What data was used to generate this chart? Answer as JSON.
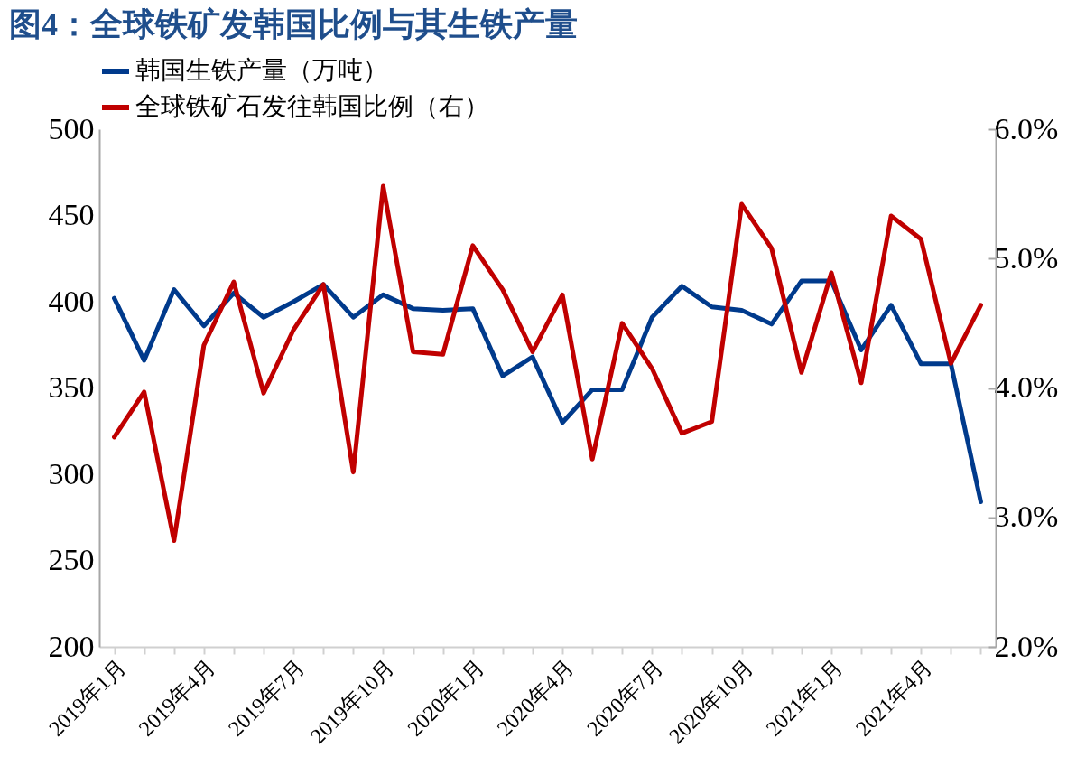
{
  "chart_data": {
    "type": "line",
    "title": "图4：全球铁矿发韩国比例与其生铁产量",
    "categories": [
      "2019年1月",
      null,
      null,
      "2019年4月",
      null,
      null,
      "2019年7月",
      null,
      null,
      "2019年10月",
      null,
      null,
      "2020年1月",
      null,
      null,
      "2020年4月",
      null,
      null,
      "2020年7月",
      null,
      null,
      "2020年10月",
      null,
      null,
      "2021年1月",
      null,
      null,
      "2021年4月",
      null,
      null
    ],
    "series": [
      {
        "name": "韩国生铁产量（万吨）",
        "color": "#003a8c",
        "values": [
          402,
          366,
          407,
          386,
          405,
          391,
          400,
          410,
          391,
          404,
          396,
          395,
          396,
          357,
          368,
          330,
          349,
          349,
          391,
          409,
          397,
          395,
          387,
          412,
          412,
          372,
          398,
          364,
          364,
          284
        ]
      },
      {
        "name": "全球铁矿石发往韩国比例（右）",
        "color": "#c00000",
        "axis": "y2",
        "values": [
          3.62,
          3.97,
          2.82,
          4.33,
          4.82,
          3.96,
          4.45,
          4.8,
          3.35,
          5.56,
          4.28,
          4.26,
          5.1,
          4.76,
          4.28,
          4.72,
          3.45,
          4.5,
          4.15,
          3.65,
          3.74,
          5.42,
          5.08,
          4.12,
          4.89,
          4.04,
          5.33,
          5.15,
          4.19,
          4.64
        ]
      }
    ],
    "ylim": [
      200,
      500
    ],
    "yticks": [
      200,
      250,
      300,
      350,
      400,
      450,
      500
    ],
    "y2lim": [
      2,
      6
    ],
    "y2ticks": [
      {
        "value": 2,
        "label": "2.0%"
      },
      {
        "value": 3,
        "label": "3.0%"
      },
      {
        "value": 4,
        "label": "4.0%"
      },
      {
        "value": 5,
        "label": "5.0%"
      },
      {
        "value": 6,
        "label": "6.0%"
      }
    ],
    "legend": "top",
    "grid": false,
    "marker": "none",
    "line_style": "solid"
  }
}
